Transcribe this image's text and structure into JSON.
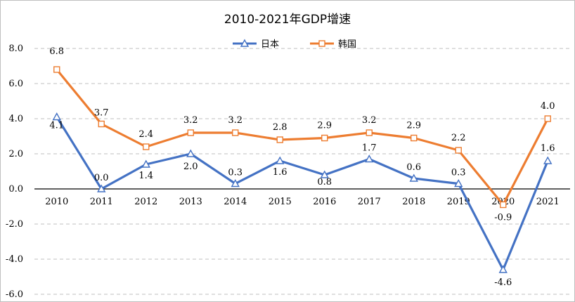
{
  "chart_data": {
    "type": "line",
    "title": "2010-2021年GDP增速",
    "xlabel": "",
    "ylabel": "",
    "categories": [
      "2010",
      "2011",
      "2012",
      "2013",
      "2014",
      "2015",
      "2016",
      "2017",
      "2018",
      "2019",
      "2020",
      "2021"
    ],
    "ylim": [
      -6.0,
      8.0
    ],
    "yticks": [
      "8.0",
      "6.0",
      "4.0",
      "2.0",
      "0.0",
      "-2.0",
      "-4.0",
      "-6.0"
    ],
    "grid": true,
    "legend_position": "top-center",
    "series": [
      {
        "name": "日本",
        "color": "#4472C4",
        "marker": "triangle",
        "values": [
          4.1,
          0.0,
          1.4,
          2.0,
          0.3,
          1.6,
          0.8,
          1.7,
          0.6,
          0.3,
          -4.6,
          1.6
        ],
        "labels": [
          "4.1",
          "0.0",
          "1.4",
          "2.0",
          "0.3",
          "1.6",
          "0.8",
          "1.7",
          "0.6",
          "0.3",
          "-4.6",
          "1.6"
        ]
      },
      {
        "name": "韩国",
        "color": "#ED7D31",
        "marker": "square",
        "values": [
          6.8,
          3.7,
          2.4,
          3.2,
          3.2,
          2.8,
          2.9,
          3.2,
          2.9,
          2.2,
          -0.9,
          4.0
        ],
        "labels": [
          "6.8",
          "3.7",
          "2.4",
          "3.2",
          "3.2",
          "2.8",
          "2.9",
          "3.2",
          "2.9",
          "2.2",
          "-0.9",
          "4.0"
        ]
      }
    ]
  }
}
